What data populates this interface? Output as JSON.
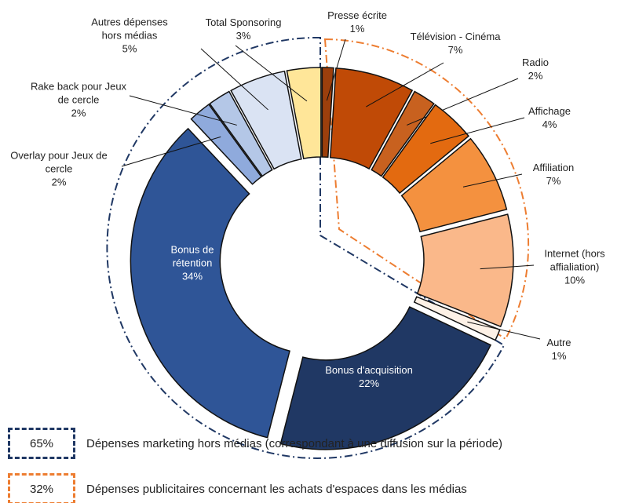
{
  "chart_data": {
    "type": "donut",
    "categories": [
      "Presse écrite",
      "Télévision - Cinéma",
      "Radio",
      "Affichage",
      "Affiliation",
      "Internet (hors affialiation)",
      "Autre",
      "Bonus d'acquisition",
      "Bonus de rétention",
      "Overlay pour Jeux de cercle",
      "Rake back pour Jeux de cercle",
      "Autres dépenses hors médias",
      "Total Sponsoring"
    ],
    "values": [
      1,
      7,
      2,
      4,
      7,
      10,
      1,
      22,
      34,
      2,
      2,
      5,
      3
    ],
    "value_labels": [
      "1%",
      "7%",
      "2%",
      "4%",
      "7%",
      "10%",
      "1%",
      "22%",
      "34%",
      "2%",
      "2%",
      "5%",
      "3%"
    ],
    "colors": [
      "#9c3f0c",
      "#c04a06",
      "#c8611f",
      "#e36a10",
      "#f4913f",
      "#fab88a",
      "#fdf1e6",
      "#203864",
      "#2f5597",
      "#8faadc",
      "#b4c7e7",
      "#dae3f3",
      "#ffe699"
    ],
    "legend": [
      {
        "label": "65%",
        "text": "Dépenses marketing hors médias (correspondant à une diffusion sur la période)",
        "color": "#203864"
      },
      {
        "label": "32%",
        "text": "Dépenses publicitaires concernant les achats d'espaces dans les médias",
        "color": "#ed7d31"
      }
    ]
  }
}
